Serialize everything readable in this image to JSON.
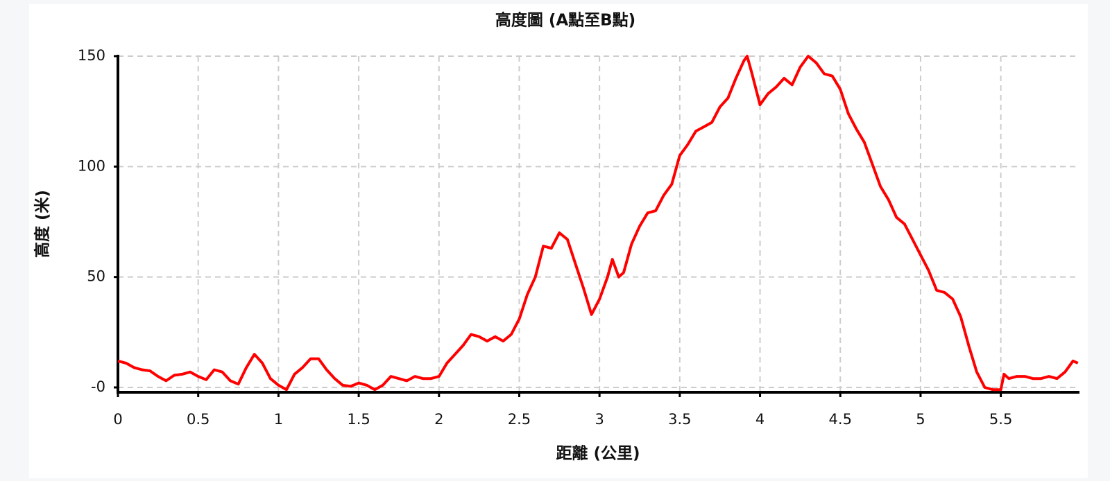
{
  "chart_data": {
    "type": "line",
    "title": "高度圖 (A點至B點)",
    "x_label": "距離 (公里)",
    "y_label": "高度 (米)",
    "x": [
      0,
      0.05,
      0.1,
      0.15,
      0.2,
      0.25,
      0.3,
      0.35,
      0.4,
      0.45,
      0.5,
      0.55,
      0.6,
      0.65,
      0.7,
      0.75,
      0.8,
      0.85,
      0.9,
      0.95,
      1.0,
      1.05,
      1.1,
      1.15,
      1.2,
      1.25,
      1.3,
      1.35,
      1.4,
      1.45,
      1.5,
      1.55,
      1.6,
      1.65,
      1.7,
      1.75,
      1.8,
      1.85,
      1.9,
      1.95,
      2.0,
      2.05,
      2.1,
      2.15,
      2.2,
      2.25,
      2.3,
      2.35,
      2.4,
      2.45,
      2.5,
      2.55,
      2.6,
      2.65,
      2.7,
      2.75,
      2.8,
      2.85,
      2.9,
      2.95,
      3.0,
      3.05,
      3.08,
      3.12,
      3.15,
      3.2,
      3.25,
      3.3,
      3.35,
      3.4,
      3.45,
      3.5,
      3.55,
      3.6,
      3.65,
      3.7,
      3.75,
      3.8,
      3.85,
      3.9,
      3.92,
      3.95,
      4.0,
      4.05,
      4.1,
      4.15,
      4.2,
      4.25,
      4.3,
      4.35,
      4.4,
      4.45,
      4.5,
      4.55,
      4.6,
      4.65,
      4.7,
      4.75,
      4.8,
      4.85,
      4.9,
      4.95,
      5.0,
      5.05,
      5.1,
      5.15,
      5.2,
      5.25,
      5.3,
      5.35,
      5.4,
      5.45,
      5.5,
      5.52,
      5.55,
      5.6,
      5.65,
      5.7,
      5.75,
      5.8,
      5.85,
      5.9,
      5.95,
      5.98
    ],
    "series": [
      {
        "name": "高度",
        "color": "#ff0000",
        "values": [
          12,
          11,
          9,
          8,
          7.5,
          5,
          3,
          5.5,
          6,
          7,
          5,
          3.5,
          8,
          7,
          3,
          1.5,
          9,
          15,
          11,
          4,
          1,
          -1,
          6,
          9,
          13,
          13,
          8,
          4,
          1,
          0.5,
          2,
          1,
          -1,
          1,
          5,
          4,
          3,
          5,
          4,
          4,
          5,
          11,
          15,
          19,
          24,
          23,
          21,
          23,
          21,
          24,
          31,
          42,
          50,
          64,
          63,
          70,
          67,
          56,
          45,
          33,
          40,
          50,
          58,
          50,
          52,
          65,
          73,
          79,
          80,
          87,
          92,
          105,
          110,
          116,
          118,
          120,
          127,
          131,
          140,
          148,
          150,
          142,
          128,
          133,
          136,
          140,
          137,
          145,
          150,
          147,
          142,
          141,
          135,
          124,
          117,
          111,
          101,
          91,
          85,
          77,
          74,
          67,
          60,
          53,
          44,
          43,
          40,
          32,
          19,
          7,
          0,
          -1,
          -1,
          6,
          4,
          5,
          5,
          4,
          4,
          5,
          4,
          7,
          12,
          11
        ]
      }
    ],
    "xlim": [
      0,
      5.99
    ],
    "ylim": [
      -2.2,
      150
    ],
    "xticks": [
      0,
      0.5,
      1,
      1.5,
      2,
      2.5,
      3,
      3.5,
      4,
      4.5,
      5,
      5.5
    ],
    "yticks": [
      {
        "value": 0,
        "label": "-0"
      },
      50,
      100,
      150
    ],
    "grid": true
  }
}
